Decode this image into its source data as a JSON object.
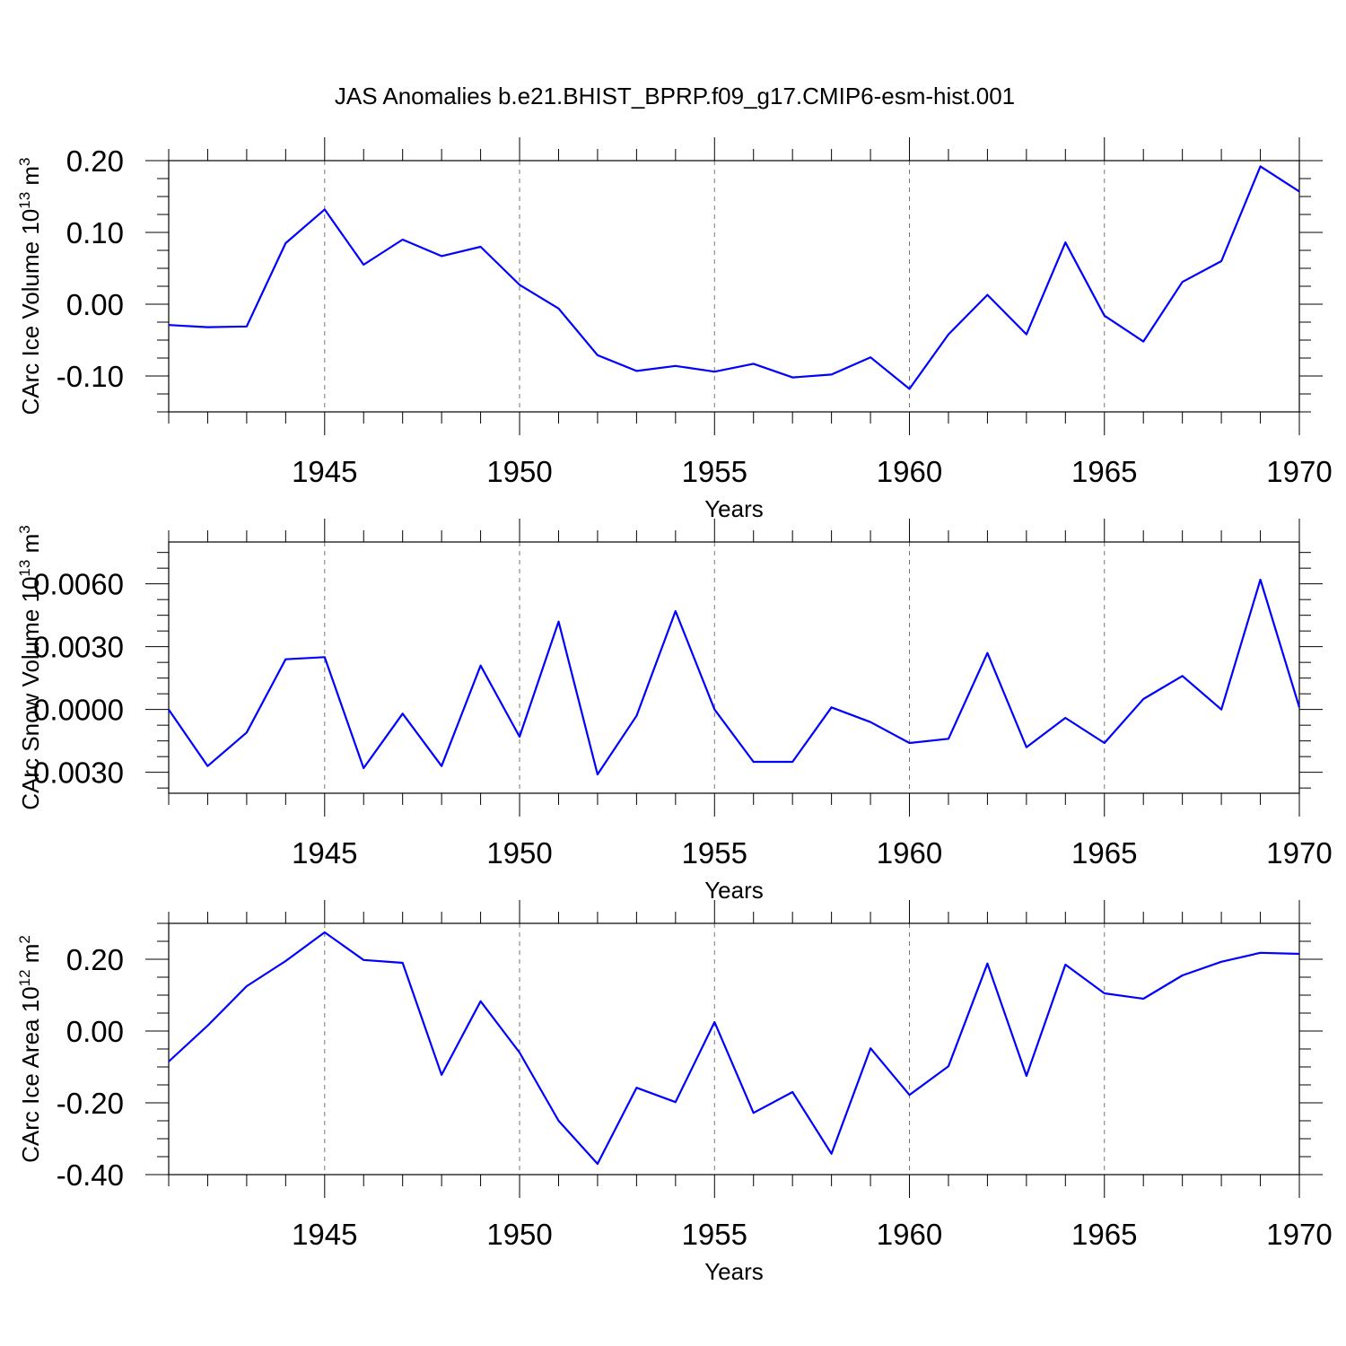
{
  "chart_data": {
    "type": "line",
    "title": "JAS Anomalies b.e21.BHIST_BPRP.f09_g17.CMIP6-esm-hist.001",
    "panels": [
      {
        "name": "ice-volume",
        "ylabel": "CArc Ice Volume 10",
        "ylabel_exp": "13",
        "ylabel_unit": " m",
        "ylabel_unit_exp": "3",
        "xlabel": "Years",
        "xlim": [
          1941,
          1970
        ],
        "ylim": [
          -0.15,
          0.2
        ],
        "yticks": [
          0.2,
          0.1,
          0.0,
          -0.1
        ],
        "yticklabels": [
          "0.20",
          "0.10",
          "0.00",
          "-0.10"
        ],
        "xticks": [
          1945,
          1950,
          1955,
          1960,
          1965,
          1970
        ],
        "xticklabels": [
          "1945",
          "1950",
          "1955",
          "1960",
          "1965",
          "1970"
        ],
        "x": [
          1941,
          1942,
          1943,
          1944,
          1945,
          1946,
          1947,
          1948,
          1949,
          1950,
          1951,
          1952,
          1953,
          1954,
          1955,
          1956,
          1957,
          1958,
          1959,
          1960,
          1961,
          1962,
          1963,
          1964,
          1965,
          1966,
          1967,
          1968,
          1969,
          1970
        ],
        "values": [
          -0.029,
          -0.032,
          -0.031,
          0.085,
          0.132,
          0.055,
          0.09,
          0.067,
          0.08,
          0.027,
          -0.006,
          -0.071,
          -0.093,
          -0.086,
          -0.094,
          -0.083,
          -0.102,
          -0.098,
          -0.074,
          -0.118,
          -0.042,
          0.013,
          -0.042,
          0.086,
          -0.016,
          -0.052,
          0.031,
          0.06,
          0.192,
          0.157
        ]
      },
      {
        "name": "snow-volume",
        "ylabel": "CArc Snow Volume 10",
        "ylabel_exp": "13",
        "ylabel_unit": " m",
        "ylabel_unit_exp": "3",
        "xlabel": "Years",
        "xlim": [
          1941,
          1970
        ],
        "ylim": [
          -0.004,
          0.008
        ],
        "yticks": [
          0.006,
          0.003,
          0.0,
          -0.003
        ],
        "yticklabels": [
          "0.0060",
          "0.0030",
          "0.0000",
          "-0.0030"
        ],
        "xticks": [
          1945,
          1950,
          1955,
          1960,
          1965,
          1970
        ],
        "xticklabels": [
          "1945",
          "1950",
          "1955",
          "1960",
          "1965",
          "1970"
        ],
        "x": [
          1941,
          1942,
          1943,
          1944,
          1945,
          1946,
          1947,
          1948,
          1949,
          1950,
          1951,
          1952,
          1953,
          1954,
          1955,
          1956,
          1957,
          1958,
          1959,
          1960,
          1961,
          1962,
          1963,
          1964,
          1965,
          1966,
          1967,
          1968,
          1969,
          1970
        ],
        "values": [
          0.0,
          -0.0027,
          -0.0011,
          0.0024,
          0.0025,
          -0.0028,
          -0.0002,
          -0.0027,
          0.0021,
          -0.0013,
          0.0042,
          -0.0031,
          -0.0003,
          0.0047,
          0.0,
          -0.0025,
          -0.0025,
          0.0001,
          -0.0006,
          -0.0016,
          -0.0014,
          0.0027,
          -0.0018,
          -0.0004,
          -0.0016,
          0.0005,
          0.0016,
          0.0,
          0.0062,
          0.0001
        ]
      },
      {
        "name": "ice-area",
        "ylabel": "CArc Ice Area 10",
        "ylabel_exp": "12",
        "ylabel_unit": " m",
        "ylabel_unit_exp": "2",
        "xlabel": "Years",
        "xlim": [
          1941,
          1970
        ],
        "ylim": [
          -0.4,
          0.3
        ],
        "yticks": [
          0.2,
          0.0,
          -0.2,
          -0.4
        ],
        "yticklabels": [
          "0.20",
          "0.00",
          "-0.20",
          "-0.40"
        ],
        "xticks": [
          1945,
          1950,
          1955,
          1960,
          1965,
          1970
        ],
        "xticklabels": [
          "1945",
          "1950",
          "1955",
          "1960",
          "1965",
          "1970"
        ],
        "x": [
          1941,
          1942,
          1943,
          1944,
          1945,
          1946,
          1947,
          1948,
          1949,
          1950,
          1951,
          1952,
          1953,
          1954,
          1955,
          1956,
          1957,
          1958,
          1959,
          1960,
          1961,
          1962,
          1963,
          1964,
          1965,
          1966,
          1967,
          1968,
          1969,
          1970
        ],
        "values": [
          -0.085,
          0.015,
          0.125,
          0.195,
          0.275,
          0.198,
          0.19,
          -0.122,
          0.083,
          -0.06,
          -0.25,
          -0.37,
          -0.158,
          -0.198,
          0.025,
          -0.228,
          -0.17,
          -0.342,
          -0.048,
          -0.178,
          -0.098,
          0.188,
          -0.125,
          0.185,
          0.105,
          0.09,
          0.155,
          0.193,
          0.218,
          0.215
        ]
      }
    ],
    "grid_x": [
      1945,
      1950,
      1955,
      1960,
      1965
    ],
    "series_color": "#0000ff"
  }
}
